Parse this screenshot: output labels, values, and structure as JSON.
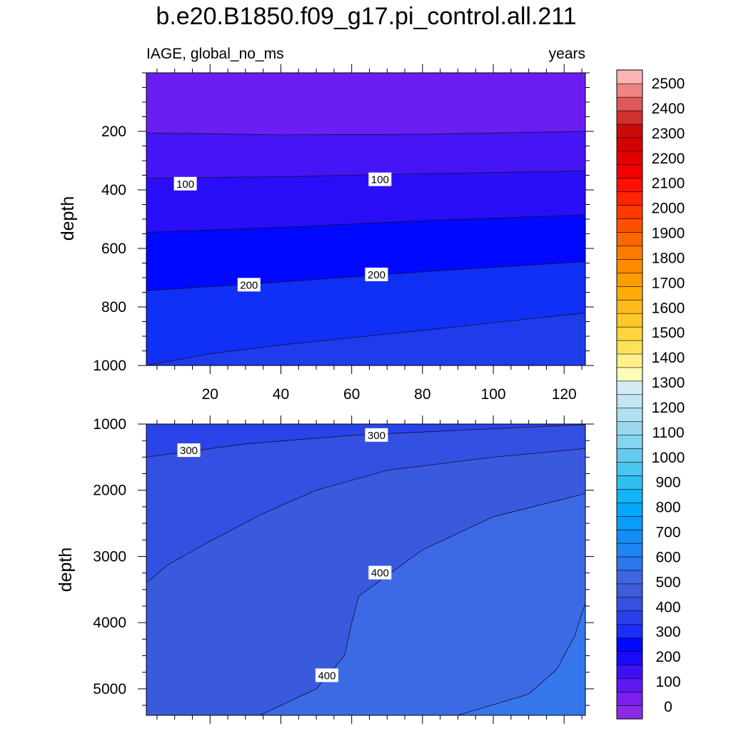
{
  "chart_data": {
    "type": "contour",
    "title": "b.e20.B1850.f09_g17.pi_control.all.211",
    "left_string": "IAGE, global_no_ms",
    "right_string": "years",
    "x_ticks": [
      20,
      40,
      60,
      80,
      100,
      120
    ],
    "xlim": [
      2,
      126
    ],
    "upper_panel": {
      "ylabel": "depth",
      "ylim": [
        0,
        1000
      ],
      "y_ticks": [
        200,
        400,
        600,
        800,
        1000
      ],
      "contour_lines": [
        {
          "level": 50,
          "points": [
            [
              2,
              205
            ],
            [
              40,
              212
            ],
            [
              80,
              210
            ],
            [
              126,
              200
            ]
          ]
        },
        {
          "level": 100,
          "points": [
            [
              2,
              360
            ],
            [
              40,
              355
            ],
            [
              80,
              345
            ],
            [
              126,
              335
            ]
          ]
        },
        {
          "level": 150,
          "points": [
            [
              2,
              545
            ],
            [
              40,
              528
            ],
            [
              80,
              505
            ],
            [
              126,
              485
            ]
          ]
        },
        {
          "level": 200,
          "points": [
            [
              2,
              745
            ],
            [
              40,
              715
            ],
            [
              80,
              680
            ],
            [
              126,
              645
            ]
          ]
        },
        {
          "level": 250,
          "points": [
            [
              2,
              1000
            ],
            [
              20,
              960
            ],
            [
              40,
              930
            ],
            [
              80,
              880
            ],
            [
              126,
              820
            ]
          ]
        }
      ],
      "line_labels": [
        {
          "text": "100",
          "x": 13,
          "y": 380
        },
        {
          "text": "100",
          "x": 68,
          "y": 365
        },
        {
          "text": "200",
          "x": 31,
          "y": 725
        },
        {
          "text": "200",
          "x": 67,
          "y": 690
        }
      ]
    },
    "lower_panel": {
      "ylabel": "depth",
      "ylim": [
        1000,
        5400
      ],
      "y_ticks": [
        1000,
        2000,
        3000,
        4000,
        5000
      ],
      "contour_lines": [
        {
          "level": 300,
          "points": [
            [
              2,
              1500
            ],
            [
              30,
              1300
            ],
            [
              60,
              1170
            ],
            [
              100,
              1070
            ],
            [
              126,
              1010
            ]
          ]
        },
        {
          "level": 350,
          "points": [
            [
              2,
              3400
            ],
            [
              8,
              3130
            ],
            [
              20,
              2770
            ],
            [
              35,
              2350
            ],
            [
              50,
              2000
            ],
            [
              70,
              1700
            ],
            [
              100,
              1500
            ],
            [
              126,
              1370
            ]
          ]
        },
        {
          "level": 400,
          "points": [
            [
              34,
              5400
            ],
            [
              50,
              5000
            ],
            [
              58,
              4500
            ],
            [
              60,
              4000
            ],
            [
              62,
              3600
            ],
            [
              80,
              2900
            ],
            [
              100,
              2400
            ],
            [
              126,
              2050
            ]
          ]
        },
        {
          "level": 450,
          "points": [
            [
              90,
              5400
            ],
            [
              110,
              5080
            ],
            [
              118,
              4700
            ],
            [
              123,
              4200
            ],
            [
              126,
              3700
            ]
          ]
        }
      ],
      "line_labels": [
        {
          "text": "300",
          "x": 14,
          "y": 1400
        },
        {
          "text": "300",
          "x": 67,
          "y": 1170
        },
        {
          "text": "400",
          "x": 68,
          "y": 3250
        },
        {
          "text": "400",
          "x": 53,
          "y": 4800
        }
      ]
    },
    "colorbar": {
      "labels": [
        "0",
        "100",
        "200",
        "300",
        "400",
        "500",
        "600",
        "700",
        "800",
        "900",
        "1000",
        "1100",
        "1200",
        "1300",
        "1400",
        "1500",
        "1600",
        "1700",
        "1800",
        "1900",
        "2000",
        "2100",
        "2200",
        "2300",
        "2400",
        "2500"
      ],
      "colors": [
        "#8a2ce6",
        "#7a1ff0",
        "#5e18f2",
        "#3c12f5",
        "#1a0cf8",
        "#0008ff",
        "#1a2ef8",
        "#2a40ea",
        "#3650e0",
        "#3e5cdc",
        "#3e66e0",
        "#2c75ec",
        "#1e85f2",
        "#128ef5",
        "#0b9bf8",
        "#06a8fa",
        "#12b4f5",
        "#2ebff0",
        "#4cc6ee",
        "#66cbee",
        "#84d4f0",
        "#9ad8f0",
        "#b0e0f2",
        "#c4e6f4",
        "#d4ecf6",
        "#fffcb8",
        "#fff08a",
        "#ffe25a",
        "#ffd53c",
        "#ffc828",
        "#ffb91a",
        "#ffab0a",
        "#ff9c00",
        "#ff8c00",
        "#ff7a00",
        "#ff6600",
        "#ff5000",
        "#ff3a00",
        "#ff2400",
        "#ff1000",
        "#f40000",
        "#e40000",
        "#d60000",
        "#cc0a0a",
        "#d03030",
        "#e05858",
        "#ee8484",
        "#fab4b4"
      ]
    }
  }
}
